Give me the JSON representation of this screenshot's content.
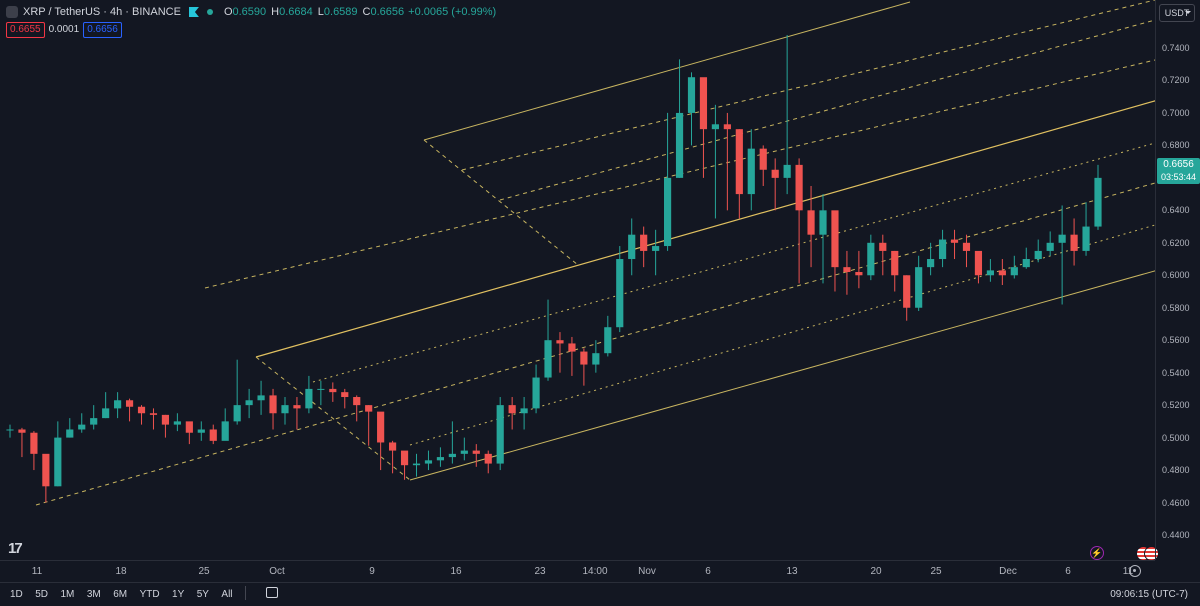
{
  "legend": {
    "symbol": "XRP / TetherUS · 4h · BINANCE",
    "open_label": "O",
    "open": "0.6590",
    "high_label": "H",
    "high": "0.6684",
    "low_label": "L",
    "low": "0.6589",
    "close_label": "C",
    "close": "0.6656",
    "change": "+0.0065 (+0.99%)",
    "bid": "0.6655",
    "spread": "0.0001",
    "ask": "0.6656"
  },
  "price_axis": {
    "currency": "USDT",
    "last_price": "0.6656",
    "countdown": "03:53:44",
    "ticks": [
      "0.7400",
      "0.7200",
      "0.7000",
      "0.6800",
      "0.6600",
      "0.6400",
      "0.6200",
      "0.6000",
      "0.5800",
      "0.5600",
      "0.5400",
      "0.5200",
      "0.5000",
      "0.4800",
      "0.4600",
      "0.4400"
    ]
  },
  "time_axis": {
    "labels": [
      "11",
      "18",
      "25",
      "Oct",
      "9",
      "16",
      "23",
      "14:00",
      "Nov",
      "6",
      "13",
      "20",
      "25",
      "Dec",
      "6",
      "11"
    ]
  },
  "bottom_bar": {
    "ranges": [
      "1D",
      "5D",
      "1M",
      "3M",
      "6M",
      "YTD",
      "1Y",
      "5Y",
      "All"
    ],
    "clock": "09:06:15 (UTC-7)"
  },
  "logo_text": "17",
  "colors": {
    "up": "#26a69a",
    "down": "#ef5350",
    "channel": "#e0c060",
    "background": "#131722"
  },
  "chart_data": {
    "type": "candlestick",
    "ylim": [
      0.43,
      0.755
    ],
    "x": [
      "Sep 8",
      "Sep 9",
      "Sep 10",
      "Sep 11",
      "Sep 12",
      "Sep 13",
      "Sep 14",
      "Sep 15",
      "Sep 16",
      "Sep 17",
      "Sep 18",
      "Sep 19",
      "Sep 20",
      "Sep 21",
      "Sep 22",
      "Sep 23",
      "Sep 24",
      "Sep 25",
      "Sep 26",
      "Sep 27",
      "Sep 28",
      "Sep 29",
      "Sep 30",
      "Oct 1",
      "Oct 2",
      "Oct 3",
      "Oct 4",
      "Oct 5",
      "Oct 6",
      "Oct 7",
      "Oct 8",
      "Oct 9",
      "Oct 10",
      "Oct 11",
      "Oct 12",
      "Oct 13",
      "Oct 14",
      "Oct 15",
      "Oct 16",
      "Oct 17",
      "Oct 18",
      "Oct 19",
      "Oct 20",
      "Oct 21",
      "Oct 22",
      "Oct 23",
      "Oct 24",
      "Oct 25",
      "Oct 26",
      "Oct 27",
      "Oct 28",
      "Oct 29",
      "Oct 30",
      "Oct 31",
      "Nov 1",
      "Nov 2",
      "Nov 3",
      "Nov 4",
      "Nov 5",
      "Nov 6",
      "Nov 7",
      "Nov 8",
      "Nov 9",
      "Nov 10",
      "Nov 11",
      "Nov 12",
      "Nov 13",
      "Nov 14",
      "Nov 15",
      "Nov 16",
      "Nov 17",
      "Nov 18",
      "Nov 19",
      "Nov 20",
      "Nov 21",
      "Nov 22",
      "Nov 23",
      "Nov 24",
      "Nov 25",
      "Nov 26",
      "Nov 27",
      "Nov 28",
      "Nov 29",
      "Nov 30",
      "Dec 1",
      "Dec 2",
      "Dec 3",
      "Dec 4",
      "Dec 5",
      "Dec 6",
      "Dec 7",
      "Dec 8"
    ],
    "close": [
      0.505,
      0.503,
      0.49,
      0.47,
      0.5,
      0.505,
      0.508,
      0.512,
      0.518,
      0.523,
      0.519,
      0.515,
      0.514,
      0.508,
      0.51,
      0.503,
      0.505,
      0.498,
      0.51,
      0.52,
      0.523,
      0.526,
      0.515,
      0.52,
      0.518,
      0.53,
      0.53,
      0.528,
      0.525,
      0.52,
      0.516,
      0.497,
      0.492,
      0.483,
      0.484,
      0.486,
      0.488,
      0.49,
      0.492,
      0.49,
      0.484,
      0.52,
      0.515,
      0.518,
      0.537,
      0.56,
      0.558,
      0.553,
      0.545,
      0.552,
      0.568,
      0.61,
      0.625,
      0.615,
      0.618,
      0.66,
      0.7,
      0.722,
      0.69,
      0.693,
      0.69,
      0.65,
      0.678,
      0.665,
      0.66,
      0.668,
      0.64,
      0.625,
      0.64,
      0.605,
      0.602,
      0.6,
      0.62,
      0.615,
      0.6,
      0.58,
      0.605,
      0.61,
      0.622,
      0.62,
      0.615,
      0.6,
      0.603,
      0.6,
      0.605,
      0.61,
      0.615,
      0.62,
      0.625,
      0.615,
      0.63,
      0.66
    ],
    "high": [
      0.508,
      0.506,
      0.504,
      0.485,
      0.51,
      0.512,
      0.515,
      0.52,
      0.528,
      0.528,
      0.524,
      0.52,
      0.518,
      0.514,
      0.515,
      0.508,
      0.51,
      0.508,
      0.518,
      0.548,
      0.53,
      0.535,
      0.53,
      0.525,
      0.525,
      0.538,
      0.535,
      0.534,
      0.53,
      0.526,
      0.52,
      0.505,
      0.498,
      0.49,
      0.49,
      0.492,
      0.494,
      0.51,
      0.5,
      0.496,
      0.492,
      0.525,
      0.525,
      0.525,
      0.545,
      0.585,
      0.565,
      0.562,
      0.555,
      0.56,
      0.575,
      0.618,
      0.635,
      0.63,
      0.628,
      0.7,
      0.733,
      0.725,
      0.71,
      0.705,
      0.7,
      0.69,
      0.69,
      0.68,
      0.672,
      0.748,
      0.672,
      0.655,
      0.65,
      0.625,
      0.615,
      0.615,
      0.625,
      0.625,
      0.615,
      0.6,
      0.612,
      0.62,
      0.628,
      0.628,
      0.625,
      0.61,
      0.61,
      0.61,
      0.612,
      0.617,
      0.622,
      0.627,
      0.643,
      0.635,
      0.645,
      0.668
    ],
    "low": [
      0.5,
      0.488,
      0.48,
      0.46,
      0.47,
      0.5,
      0.503,
      0.505,
      0.512,
      0.512,
      0.51,
      0.508,
      0.505,
      0.5,
      0.504,
      0.496,
      0.498,
      0.496,
      0.5,
      0.508,
      0.512,
      0.514,
      0.505,
      0.508,
      0.505,
      0.515,
      0.52,
      0.522,
      0.518,
      0.51,
      0.495,
      0.48,
      0.478,
      0.474,
      0.476,
      0.48,
      0.482,
      0.484,
      0.486,
      0.482,
      0.478,
      0.48,
      0.505,
      0.505,
      0.515,
      0.535,
      0.54,
      0.538,
      0.532,
      0.54,
      0.55,
      0.565,
      0.6,
      0.605,
      0.6,
      0.615,
      0.66,
      0.68,
      0.66,
      0.635,
      0.64,
      0.635,
      0.64,
      0.655,
      0.64,
      0.65,
      0.595,
      0.605,
      0.595,
      0.59,
      0.588,
      0.592,
      0.597,
      0.6,
      0.59,
      0.572,
      0.578,
      0.6,
      0.605,
      0.61,
      0.605,
      0.595,
      0.596,
      0.594,
      0.598,
      0.604,
      0.608,
      0.612,
      0.582,
      0.606,
      0.612,
      0.628
    ]
  }
}
